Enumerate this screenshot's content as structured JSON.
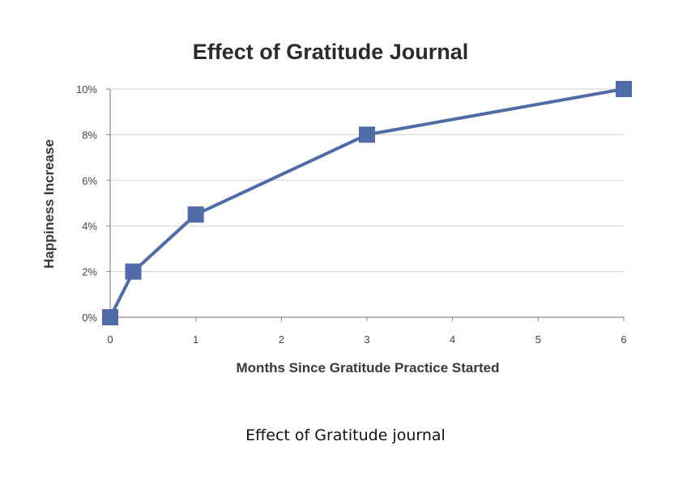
{
  "caption": "Effect of Gratitude journal",
  "chart_data": {
    "type": "line",
    "title": "Effect of Gratitude Journal",
    "xlabel": "Months Since Gratitude Practice Started",
    "ylabel": "Happiness Increase",
    "xlim": [
      0,
      6
    ],
    "ylim": [
      0,
      10
    ],
    "x_ticks": [
      "0",
      "1",
      "2",
      "3",
      "4",
      "5",
      "6"
    ],
    "y_ticks": [
      "0%",
      "2%",
      "4%",
      "6%",
      "8%",
      "10%"
    ],
    "grid": true,
    "series": [
      {
        "marker": "square",
        "color": "#4f6ba8",
        "x": [
          0,
          0.27,
          1,
          3,
          6
        ],
        "y": [
          0,
          2,
          4.5,
          8,
          10
        ]
      }
    ]
  }
}
